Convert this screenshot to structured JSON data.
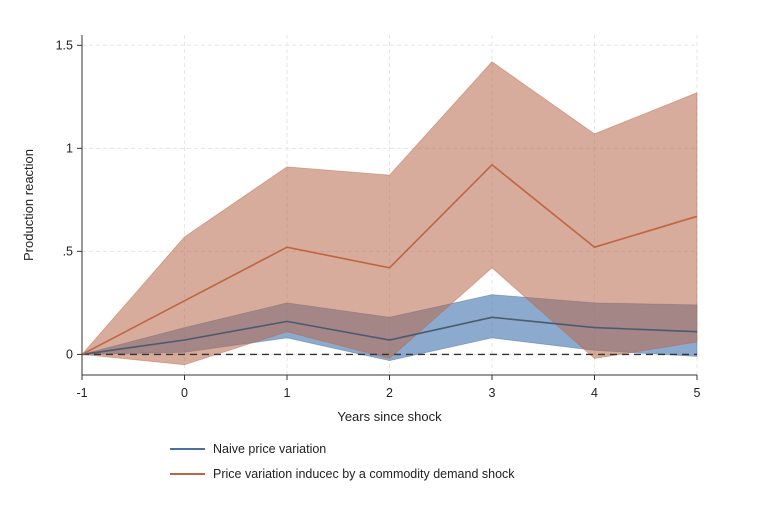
{
  "chart_data": {
    "type": "line",
    "title": "",
    "xlabel": "Years since shock",
    "ylabel": "Production reaction",
    "x": [
      -1,
      0,
      1,
      2,
      3,
      4,
      5
    ],
    "xlim": [
      -1,
      5
    ],
    "ylim": [
      -0.1,
      1.55
    ],
    "x_ticks": [
      {
        "value": -1,
        "label": "-1"
      },
      {
        "value": 0,
        "label": "0"
      },
      {
        "value": 1,
        "label": "1"
      },
      {
        "value": 2,
        "label": "2"
      },
      {
        "value": 3,
        "label": "3"
      },
      {
        "value": 4,
        "label": "4"
      },
      {
        "value": 5,
        "label": "5"
      }
    ],
    "y_ticks": [
      {
        "value": 0,
        "label": "0"
      },
      {
        "value": 0.5,
        "label": ".5"
      },
      {
        "value": 1,
        "label": "1"
      },
      {
        "value": 1.5,
        "label": "1.5"
      }
    ],
    "grid": true,
    "reference_line": {
      "y": 0,
      "style": "dashed"
    },
    "series": [
      {
        "name": "Naive price variation",
        "color": "#4a6fa5",
        "band_color": "#5b86b8",
        "values": [
          0,
          0.07,
          0.16,
          0.07,
          0.18,
          0.13,
          0.11
        ],
        "lower": [
          0,
          0.01,
          0.08,
          -0.03,
          0.08,
          0.02,
          -0.01
        ],
        "upper": [
          0,
          0.13,
          0.25,
          0.18,
          0.29,
          0.25,
          0.24
        ]
      },
      {
        "name": "Price variation inducec by a commodity demand shock",
        "color": "#c0653f",
        "band_color": "#b7684a",
        "values": [
          0,
          0.26,
          0.52,
          0.42,
          0.92,
          0.52,
          0.67
        ],
        "lower": [
          0,
          -0.05,
          0.11,
          -0.02,
          0.42,
          -0.02,
          0.06
        ],
        "upper": [
          0,
          0.57,
          0.91,
          0.87,
          1.42,
          1.07,
          1.27
        ]
      }
    ],
    "legend": {
      "placement": "bottom-left"
    }
  }
}
